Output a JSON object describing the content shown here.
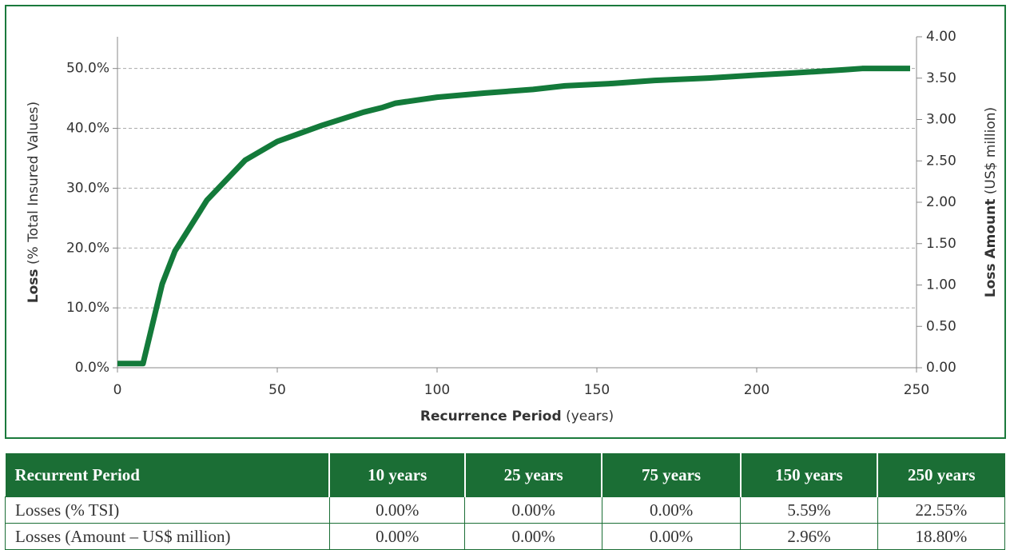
{
  "chart_data": {
    "type": "line",
    "x": [
      0,
      8,
      14,
      18,
      28,
      40,
      50,
      64,
      77,
      83,
      87,
      100,
      115,
      130,
      140,
      155,
      168,
      185,
      200,
      210,
      228,
      233,
      248
    ],
    "values": [
      0.7,
      0.7,
      14,
      19.5,
      28,
      34.7,
      37.8,
      40.5,
      42.7,
      43.5,
      44.2,
      45.2,
      45.9,
      46.5,
      47.1,
      47.5,
      48,
      48.4,
      48.9,
      49.2,
      49.8,
      50,
      50
    ],
    "color": "#137a3a",
    "xlim": [
      0,
      250
    ],
    "xticks": [
      0,
      50,
      100,
      150,
      200,
      250
    ],
    "ylim": [
      0,
      55.3
    ],
    "yticks": [
      {
        "value": 0,
        "label": "0.0%"
      },
      {
        "value": 10,
        "label": "10.0%"
      },
      {
        "value": 20,
        "label": "20.0%"
      },
      {
        "value": 30,
        "label": "30.0%"
      },
      {
        "value": 40,
        "label": "40.0%"
      },
      {
        "value": 50,
        "label": "50.0%"
      }
    ],
    "y2lim": [
      0,
      4
    ],
    "y2ticks": [
      {
        "value": 0,
        "label": "0.00"
      },
      {
        "value": 0.5,
        "label": "0.50"
      },
      {
        "value": 1,
        "label": "1.00"
      },
      {
        "value": 1.5,
        "label": "1.50"
      },
      {
        "value": 2,
        "label": "2.00"
      },
      {
        "value": 2.5,
        "label": "2.50"
      },
      {
        "value": 3,
        "label": "3.00"
      },
      {
        "value": 3.5,
        "label": "3.50"
      },
      {
        "value": 4,
        "label": "4.00"
      }
    ],
    "grid": true,
    "xlabel": {
      "bold": "Recurrence Period",
      "rest": "(years)"
    },
    "ylabel": {
      "bold": "Loss",
      "rest": "(% Total Insured Values)"
    },
    "y2label": {
      "bold": "Loss Amount",
      "rest": "(US$ million)"
    }
  },
  "table": {
    "header": [
      "Recurrent Period",
      "10 years",
      "25 years",
      "75 years",
      "150 years",
      "250 years"
    ],
    "rows": [
      [
        "Losses (% TSI)",
        "0.00%",
        "0.00%",
        "0.00%",
        "5.59%",
        "22.55%"
      ],
      [
        "Losses (Amount – US$ million)",
        "0.00%",
        "0.00%",
        "0.00%",
        "2.96%",
        "18.80%"
      ]
    ]
  }
}
